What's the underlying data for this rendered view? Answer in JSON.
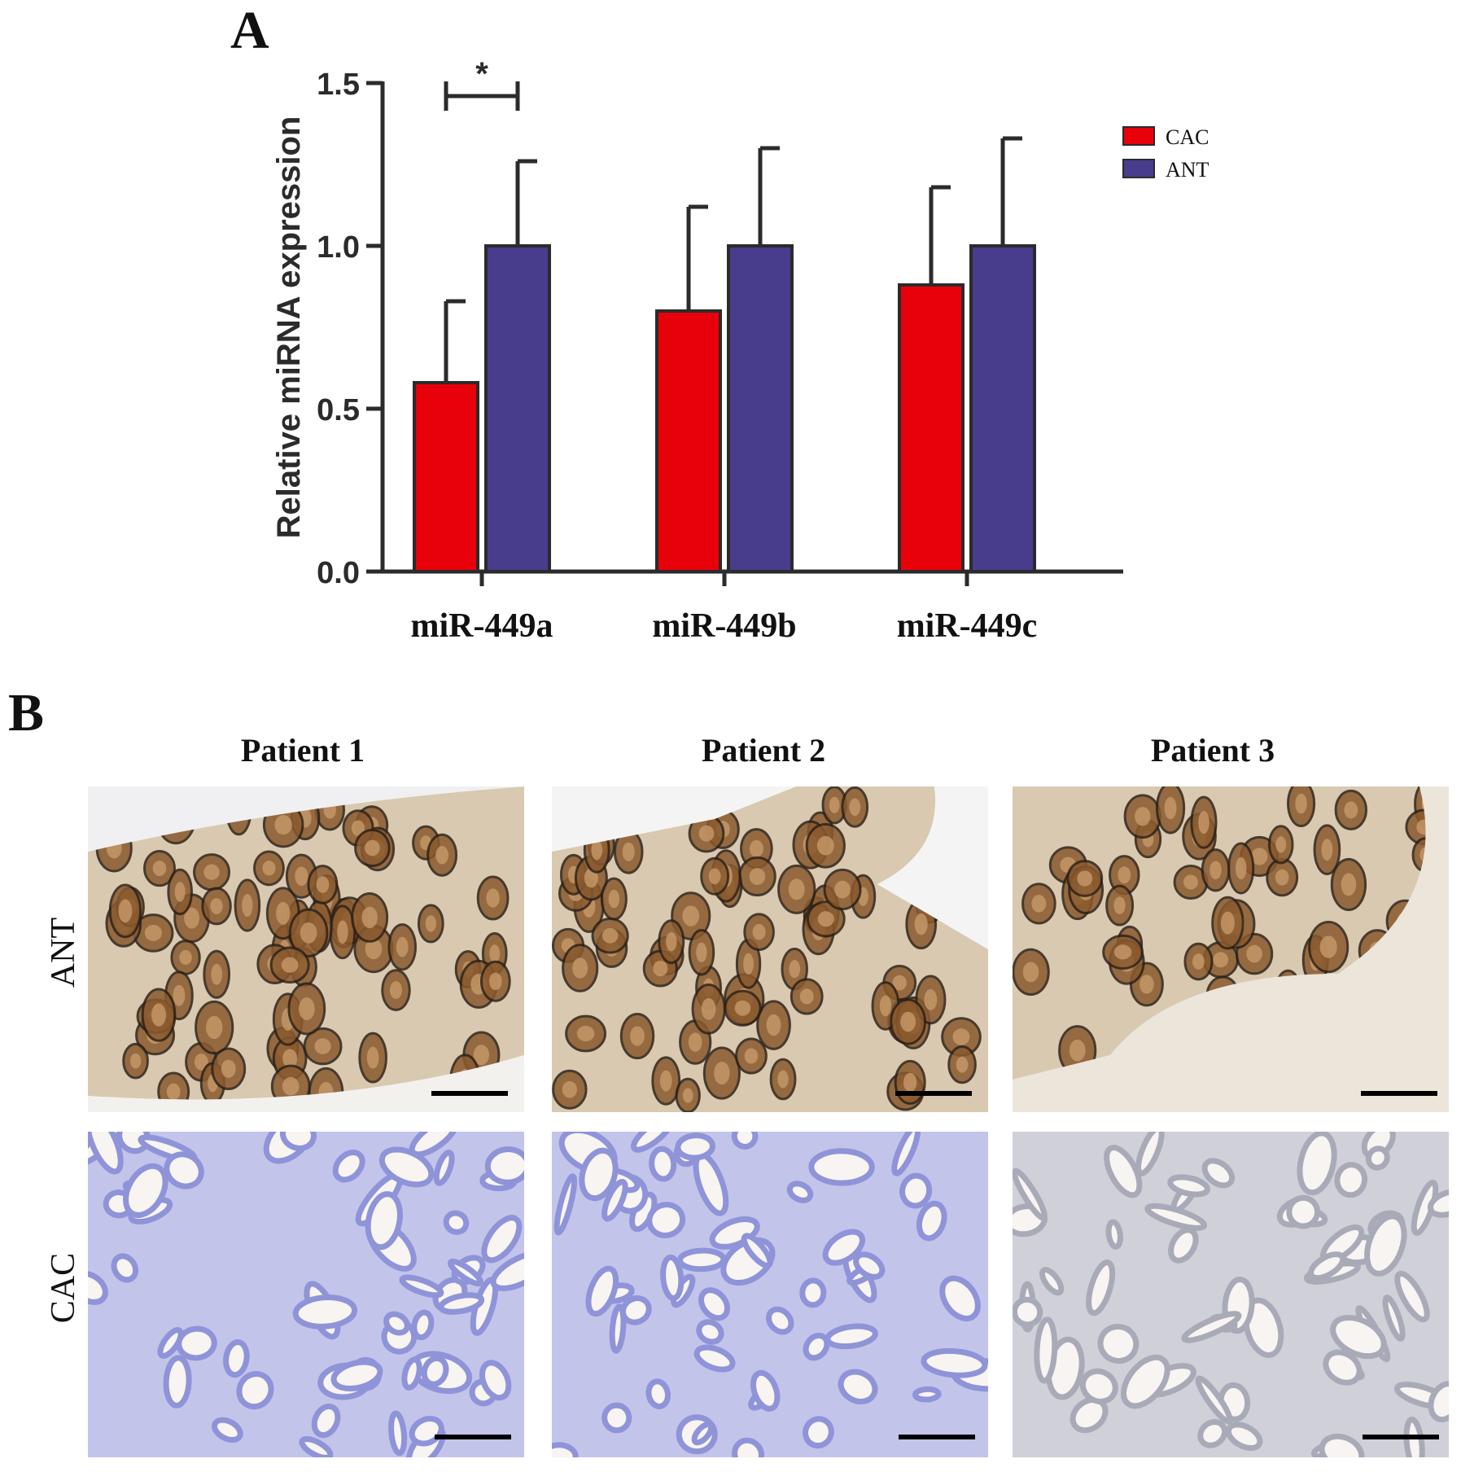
{
  "panel_a_label": "A",
  "panel_b_label": "B",
  "chart_data": {
    "type": "bar",
    "categories": [
      "miR-449a",
      "miR-449b",
      "miR-449c"
    ],
    "series": [
      {
        "name": "CAC",
        "values": [
          0.58,
          0.8,
          0.88
        ],
        "errors": [
          0.25,
          0.32,
          0.3
        ],
        "color": "#e8000b"
      },
      {
        "name": "ANT",
        "values": [
          1.0,
          1.0,
          1.0
        ],
        "errors": [
          0.26,
          0.3,
          0.33
        ],
        "color": "#483c8c"
      }
    ],
    "ylabel": "Relative miRNA expression",
    "xlabel": "",
    "ylim": [
      0,
      1.5
    ],
    "yticks": [
      "0.0",
      "0.5",
      "1.0",
      "1.5"
    ],
    "significance": {
      "category": "miR-449a",
      "label": "*"
    },
    "legend_position": "top-right",
    "grid": false
  },
  "micrographs": {
    "columns": [
      "Patient 1",
      "Patient 2",
      "Patient 3"
    ],
    "rows": [
      "ANT",
      "CAC"
    ]
  },
  "colors": {
    "ant_stain": "#8a5a2e",
    "cac_stain": "#8f93d8",
    "p3_cac_stain": "#a9aab8"
  }
}
